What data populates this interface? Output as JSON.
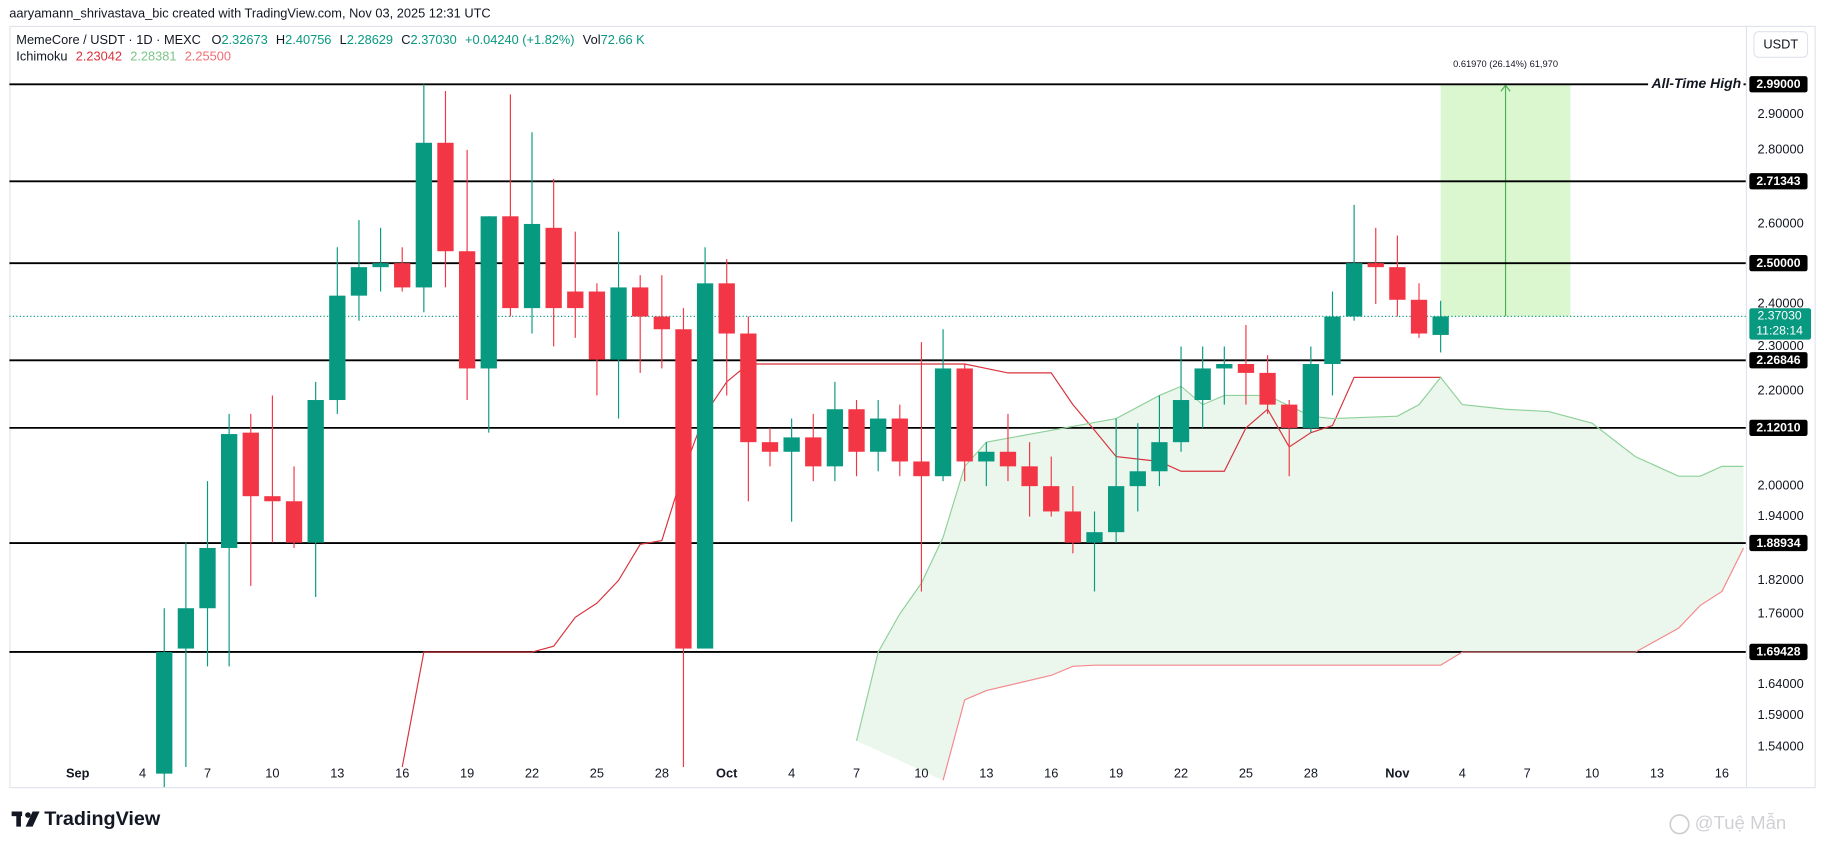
{
  "header": {
    "attribution": "aaryamann_shrivastava_bic created with TradingView.com, Nov 03, 2025 12:31 UTC",
    "symbol": "MemeCore / USDT · 1D · MEXC",
    "ohlc": [
      {
        "label": "O",
        "value": "2.32673"
      },
      {
        "label": "H",
        "value": "2.40756"
      },
      {
        "label": "L",
        "value": "2.28629"
      },
      {
        "label": "C",
        "value": "2.37030"
      }
    ],
    "change": "+0.04240 (+1.82%)",
    "volume": {
      "label": "Vol",
      "value": "72.66 K"
    },
    "indicator": {
      "label": "Ichimoku",
      "values": [
        "2.23042",
        "2.28381",
        "2.25500"
      ]
    },
    "currency_button": "USDT"
  },
  "footer": {
    "logo": "TradingView",
    "watermark": "@Tuệ Mẫn"
  },
  "chart_data": {
    "type": "candlestick",
    "log_scale": true,
    "grid": false,
    "up_color": "#089981",
    "down_color": "#f23645",
    "xlim": [
      "2025-08-29",
      "2025-11-17"
    ],
    "ylim": [
      1.48,
      3.17
    ],
    "xticks": [
      {
        "value": "2025-09-01",
        "label": "Sep"
      },
      {
        "value": "2025-09-04",
        "label": "4"
      },
      {
        "value": "2025-09-07",
        "label": "7"
      },
      {
        "value": "2025-09-10",
        "label": "10"
      },
      {
        "value": "2025-09-13",
        "label": "13"
      },
      {
        "value": "2025-09-16",
        "label": "16"
      },
      {
        "value": "2025-09-19",
        "label": "19"
      },
      {
        "value": "2025-09-22",
        "label": "22"
      },
      {
        "value": "2025-09-25",
        "label": "25"
      },
      {
        "value": "2025-09-28",
        "label": "28"
      },
      {
        "value": "2025-10-01",
        "label": "Oct"
      },
      {
        "value": "2025-10-04",
        "label": "4"
      },
      {
        "value": "2025-10-07",
        "label": "7"
      },
      {
        "value": "2025-10-10",
        "label": "10"
      },
      {
        "value": "2025-10-13",
        "label": "13"
      },
      {
        "value": "2025-10-16",
        "label": "16"
      },
      {
        "value": "2025-10-19",
        "label": "19"
      },
      {
        "value": "2025-10-22",
        "label": "22"
      },
      {
        "value": "2025-10-25",
        "label": "25"
      },
      {
        "value": "2025-10-28",
        "label": "28"
      },
      {
        "value": "2025-11-01",
        "label": "Nov"
      },
      {
        "value": "2025-11-04",
        "label": "4"
      },
      {
        "value": "2025-11-07",
        "label": "7"
      },
      {
        "value": "2025-11-10",
        "label": "10"
      },
      {
        "value": "2025-11-13",
        "label": "13"
      },
      {
        "value": "2025-11-16",
        "label": "16"
      }
    ],
    "yticks": [
      {
        "value": 2.9,
        "label": "2.90000"
      },
      {
        "value": 2.8,
        "label": "2.80000"
      },
      {
        "value": 2.6,
        "label": "2.60000"
      },
      {
        "value": 2.4,
        "label": "2.40000"
      },
      {
        "value": 2.3,
        "label": "2.30000"
      },
      {
        "value": 2.2,
        "label": "2.20000"
      },
      {
        "value": 2.0,
        "label": "2.00000"
      },
      {
        "value": 1.94,
        "label": "1.94000"
      },
      {
        "value": 1.82,
        "label": "1.82000"
      },
      {
        "value": 1.76,
        "label": "1.76000"
      },
      {
        "value": 1.64,
        "label": "1.64000"
      },
      {
        "value": 1.59,
        "label": "1.59000"
      },
      {
        "value": 1.54,
        "label": "1.54000"
      }
    ],
    "candles": [
      {
        "x": "2025-09-05",
        "open": 1.5,
        "high": 1.77,
        "low": 1.47,
        "close": 1.694
      },
      {
        "x": "2025-09-06",
        "open": 1.7,
        "high": 1.89,
        "low": 1.51,
        "close": 1.77
      },
      {
        "x": "2025-09-07",
        "open": 1.77,
        "high": 2.01,
        "low": 1.67,
        "close": 1.88
      },
      {
        "x": "2025-09-08",
        "open": 1.88,
        "high": 2.15,
        "low": 1.67,
        "close": 2.107
      },
      {
        "x": "2025-09-09",
        "open": 2.11,
        "high": 2.15,
        "low": 1.81,
        "close": 1.98
      },
      {
        "x": "2025-09-10",
        "open": 1.98,
        "high": 2.19,
        "low": 1.89,
        "close": 1.97
      },
      {
        "x": "2025-09-11",
        "open": 1.97,
        "high": 2.04,
        "low": 1.88,
        "close": 1.89
      },
      {
        "x": "2025-09-12",
        "open": 1.89,
        "high": 2.22,
        "low": 1.79,
        "close": 2.18
      },
      {
        "x": "2025-09-13",
        "open": 2.18,
        "high": 2.54,
        "low": 2.15,
        "close": 2.42
      },
      {
        "x": "2025-09-14",
        "open": 2.42,
        "high": 2.61,
        "low": 2.36,
        "close": 2.49
      },
      {
        "x": "2025-09-15",
        "open": 2.49,
        "high": 2.59,
        "low": 2.43,
        "close": 2.5
      },
      {
        "x": "2025-09-16",
        "open": 2.5,
        "high": 2.54,
        "low": 2.43,
        "close": 2.44
      },
      {
        "x": "2025-09-17",
        "open": 2.44,
        "high": 2.99,
        "low": 2.38,
        "close": 2.82
      },
      {
        "x": "2025-09-18",
        "open": 2.82,
        "high": 2.97,
        "low": 2.44,
        "close": 2.53
      },
      {
        "x": "2025-09-19",
        "open": 2.53,
        "high": 2.8,
        "low": 2.18,
        "close": 2.25
      },
      {
        "x": "2025-09-20",
        "open": 2.25,
        "high": 2.62,
        "low": 2.11,
        "close": 2.62
      },
      {
        "x": "2025-09-21",
        "open": 2.62,
        "high": 2.96,
        "low": 2.37,
        "close": 2.39
      },
      {
        "x": "2025-09-22",
        "open": 2.39,
        "high": 2.85,
        "low": 2.33,
        "close": 2.6
      },
      {
        "x": "2025-09-23",
        "open": 2.59,
        "high": 2.72,
        "low": 2.3,
        "close": 2.39
      },
      {
        "x": "2025-09-24",
        "open": 2.43,
        "high": 2.58,
        "low": 2.32,
        "close": 2.39
      },
      {
        "x": "2025-09-25",
        "open": 2.43,
        "high": 2.45,
        "low": 2.19,
        "close": 2.27
      },
      {
        "x": "2025-09-26",
        "open": 2.27,
        "high": 2.58,
        "low": 2.14,
        "close": 2.44
      },
      {
        "x": "2025-09-27",
        "open": 2.44,
        "high": 2.47,
        "low": 2.24,
        "close": 2.37
      },
      {
        "x": "2025-09-28",
        "open": 2.37,
        "high": 2.47,
        "low": 2.25,
        "close": 2.34
      },
      {
        "x": "2025-09-29",
        "open": 2.34,
        "high": 2.39,
        "low": 1.51,
        "close": 1.7
      },
      {
        "x": "2025-09-30",
        "open": 1.7,
        "high": 2.54,
        "low": 1.7,
        "close": 2.45
      },
      {
        "x": "2025-10-01",
        "open": 2.45,
        "high": 2.51,
        "low": 2.19,
        "close": 2.33
      },
      {
        "x": "2025-10-02",
        "open": 2.33,
        "high": 2.37,
        "low": 1.97,
        "close": 2.09
      },
      {
        "x": "2025-10-03",
        "open": 2.09,
        "high": 2.12,
        "low": 2.04,
        "close": 2.07
      },
      {
        "x": "2025-10-04",
        "open": 2.07,
        "high": 2.14,
        "low": 1.93,
        "close": 2.1
      },
      {
        "x": "2025-10-05",
        "open": 2.1,
        "high": 2.15,
        "low": 2.01,
        "close": 2.04
      },
      {
        "x": "2025-10-06",
        "open": 2.04,
        "high": 2.22,
        "low": 2.01,
        "close": 2.16
      },
      {
        "x": "2025-10-07",
        "open": 2.16,
        "high": 2.18,
        "low": 2.02,
        "close": 2.07
      },
      {
        "x": "2025-10-08",
        "open": 2.07,
        "high": 2.18,
        "low": 2.03,
        "close": 2.14
      },
      {
        "x": "2025-10-09",
        "open": 2.14,
        "high": 2.17,
        "low": 2.02,
        "close": 2.05
      },
      {
        "x": "2025-10-10",
        "open": 2.05,
        "high": 2.31,
        "low": 1.8,
        "close": 2.02
      },
      {
        "x": "2025-10-11",
        "open": 2.02,
        "high": 2.34,
        "low": 2.01,
        "close": 2.25
      },
      {
        "x": "2025-10-12",
        "open": 2.25,
        "high": 2.26,
        "low": 2.01,
        "close": 2.05
      },
      {
        "x": "2025-10-13",
        "open": 2.05,
        "high": 2.09,
        "low": 2.0,
        "close": 2.07
      },
      {
        "x": "2025-10-14",
        "open": 2.07,
        "high": 2.15,
        "low": 2.01,
        "close": 2.04
      },
      {
        "x": "2025-10-15",
        "open": 2.04,
        "high": 2.09,
        "low": 1.94,
        "close": 2.0
      },
      {
        "x": "2025-10-16",
        "open": 2.0,
        "high": 2.06,
        "low": 1.94,
        "close": 1.95
      },
      {
        "x": "2025-10-17",
        "open": 1.95,
        "high": 2.0,
        "low": 1.87,
        "close": 1.89
      },
      {
        "x": "2025-10-18",
        "open": 1.89,
        "high": 1.95,
        "low": 1.8,
        "close": 1.91
      },
      {
        "x": "2025-10-19",
        "open": 1.91,
        "high": 2.14,
        "low": 1.89,
        "close": 2.0
      },
      {
        "x": "2025-10-20",
        "open": 2.0,
        "high": 2.13,
        "low": 1.95,
        "close": 2.03
      },
      {
        "x": "2025-10-21",
        "open": 2.03,
        "high": 2.19,
        "low": 2.0,
        "close": 2.09
      },
      {
        "x": "2025-10-22",
        "open": 2.09,
        "high": 2.3,
        "low": 2.07,
        "close": 2.18
      },
      {
        "x": "2025-10-23",
        "open": 2.18,
        "high": 2.3,
        "low": 2.12,
        "close": 2.25
      },
      {
        "x": "2025-10-24",
        "open": 2.25,
        "high": 2.3,
        "low": 2.17,
        "close": 2.26
      },
      {
        "x": "2025-10-25",
        "open": 2.26,
        "high": 2.35,
        "low": 2.17,
        "close": 2.24
      },
      {
        "x": "2025-10-26",
        "open": 2.24,
        "high": 2.28,
        "low": 2.15,
        "close": 2.17
      },
      {
        "x": "2025-10-27",
        "open": 2.17,
        "high": 2.18,
        "low": 2.02,
        "close": 2.12
      },
      {
        "x": "2025-10-28",
        "open": 2.12,
        "high": 2.3,
        "low": 2.11,
        "close": 2.26
      },
      {
        "x": "2025-10-29",
        "open": 2.26,
        "high": 2.43,
        "low": 2.19,
        "close": 2.37
      },
      {
        "x": "2025-10-30",
        "open": 2.37,
        "high": 2.65,
        "low": 2.36,
        "close": 2.5
      },
      {
        "x": "2025-10-31",
        "open": 2.5,
        "high": 2.59,
        "low": 2.4,
        "close": 2.49
      },
      {
        "x": "2025-11-01",
        "open": 2.49,
        "high": 2.57,
        "low": 2.37,
        "close": 2.41
      },
      {
        "x": "2025-11-02",
        "open": 2.41,
        "high": 2.45,
        "low": 2.32,
        "close": 2.33
      },
      {
        "x": "2025-11-03",
        "open": 2.32673,
        "high": 2.40756,
        "low": 2.28629,
        "close": 2.3703
      }
    ],
    "lines": [
      {
        "color": "#d8323c",
        "x": [
          "2025-09-16",
          "2025-09-17",
          "2025-09-22",
          "2025-09-23",
          "2025-09-24",
          "2025-09-25",
          "2025-09-26",
          "2025-09-27",
          "2025-09-28",
          "2025-09-29",
          "2025-09-30",
          "2025-10-01",
          "2025-10-02",
          "2025-10-12",
          "2025-10-13",
          "2025-10-14",
          "2025-10-16",
          "2025-10-17",
          "2025-10-18",
          "2025-10-19",
          "2025-10-21",
          "2025-10-22",
          "2025-10-24",
          "2025-10-25",
          "2025-10-26",
          "2025-10-27",
          "2025-10-28",
          "2025-10-29",
          "2025-10-30",
          "2025-11-03"
        ],
        "values": [
          1.51,
          1.694,
          1.694,
          1.704,
          1.754,
          1.779,
          1.82,
          1.887,
          1.894,
          2.03,
          2.15,
          2.22,
          2.26,
          2.26,
          2.25,
          2.24,
          2.24,
          2.17,
          2.115,
          2.06,
          2.05,
          2.03,
          2.03,
          2.12,
          2.16,
          2.08,
          2.11,
          2.125,
          2.23,
          2.23
        ]
      },
      {
        "color": "#8fd19a",
        "x": [
          "2025-10-07",
          "2025-10-08",
          "2025-10-09",
          "2025-10-10",
          "2025-10-11",
          "2025-10-12",
          "2025-10-13",
          "2025-10-16",
          "2025-10-19",
          "2025-10-21",
          "2025-10-22",
          "2025-10-23",
          "2025-10-24",
          "2025-10-26",
          "2025-10-28",
          "2025-10-29",
          "2025-11-01",
          "2025-11-02",
          "2025-11-03",
          "2025-11-04",
          "2025-11-06",
          "2025-11-08",
          "2025-11-10",
          "2025-11-12",
          "2025-11-14",
          "2025-11-15",
          "2025-11-16",
          "2025-11-17"
        ],
        "values": [
          1.55,
          1.694,
          1.76,
          1.815,
          1.9,
          2.04,
          2.09,
          2.115,
          2.14,
          2.19,
          2.21,
          2.17,
          2.19,
          2.19,
          2.145,
          2.14,
          2.145,
          2.17,
          2.23,
          2.17,
          2.16,
          2.155,
          2.13,
          2.06,
          2.02,
          2.02,
          2.04,
          2.04
        ]
      },
      {
        "color": "#f4898d",
        "x": [
          "2025-10-11",
          "2025-10-12",
          "2025-10-13",
          "2025-10-16",
          "2025-10-17",
          "2025-10-18",
          "2025-11-03",
          "2025-11-04",
          "2025-11-12",
          "2025-11-14",
          "2025-11-15",
          "2025-11-16",
          "2025-11-17"
        ],
        "values": [
          1.49,
          1.615,
          1.63,
          1.655,
          1.67,
          1.672,
          1.672,
          1.694,
          1.694,
          1.735,
          1.775,
          1.8,
          1.88
        ]
      }
    ],
    "cloud_color": "rgba(76,175,80,0.11)",
    "levels": [
      {
        "value": 2.99,
        "label": "2.99000",
        "annotation": "All-Time High"
      },
      {
        "value": 2.71343,
        "label": "2.71343"
      },
      {
        "value": 2.5,
        "label": "2.50000"
      },
      {
        "value": 2.26846,
        "label": "2.26846"
      },
      {
        "value": 2.1201,
        "label": "2.12010"
      },
      {
        "value": 1.88934,
        "label": "1.88934"
      },
      {
        "value": 1.69428,
        "label": "1.69428"
      }
    ],
    "last_price": {
      "value": 2.3703,
      "label": "2.37030",
      "countdown": "11:28:14"
    },
    "measure": {
      "x": [
        "2025-11-03",
        "2025-11-09"
      ],
      "y": [
        2.3703,
        2.99
      ],
      "label": "0.61970 (26.14%) 61,970"
    }
  }
}
